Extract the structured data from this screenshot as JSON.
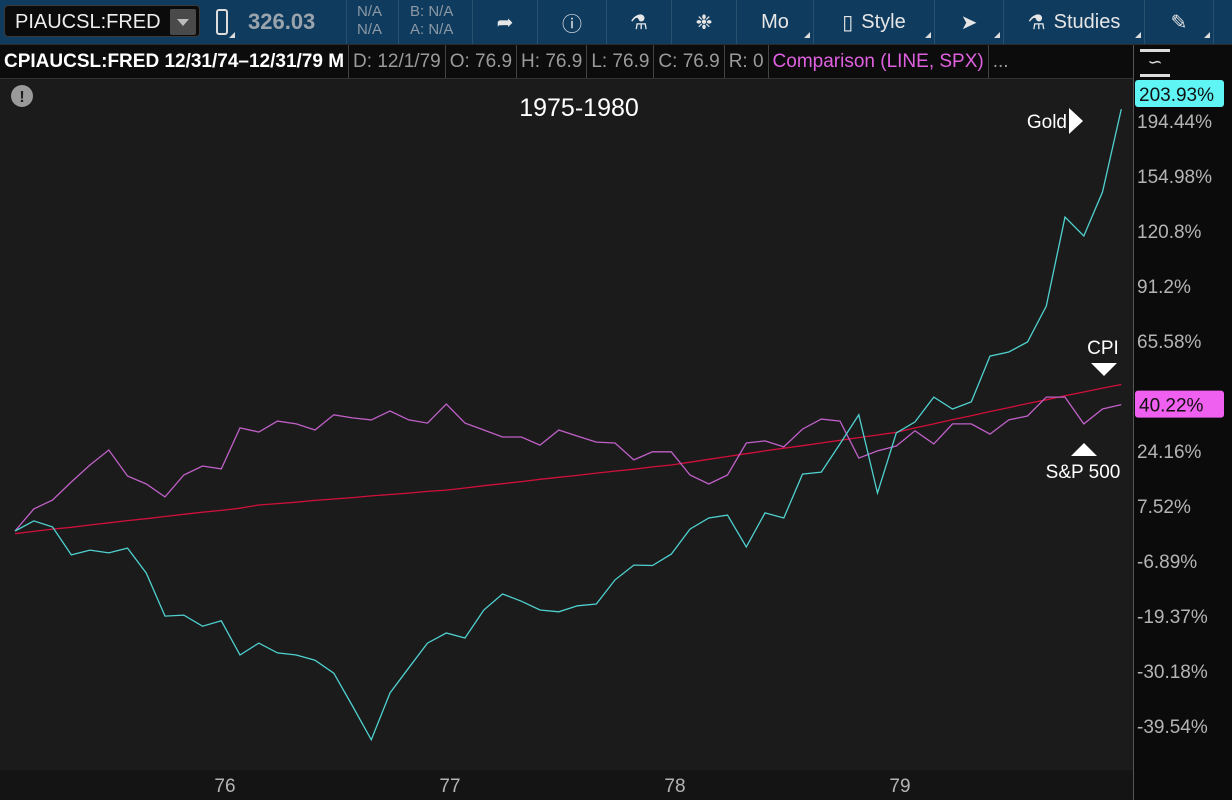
{
  "toolbar": {
    "symbol": "PIAUCSL:FRED",
    "last_price": "326.03",
    "change_top": "N/A",
    "change_bottom": "N/A",
    "bid": "B: N/A",
    "ask": "A: N/A",
    "mode_label": "Mo",
    "style_label": "Style",
    "studies_label": "Studies"
  },
  "infobar": {
    "title": "CPIAUCSL:FRED 12/31/74–12/31/79 M",
    "date": "D: 12/1/79",
    "open": "O: 76.9",
    "high": "H: 76.9",
    "low": "L: 76.9",
    "close": "C: 76.9",
    "range": "R: 0",
    "comparison": "Comparison (LINE, SPX)",
    "more": "..."
  },
  "chart_data": {
    "type": "line",
    "title": "1975-1980",
    "y_scale": "log (percent change)",
    "y_ticks": [
      "194.44%",
      "154.98%",
      "120.8%",
      "91.2%",
      "65.58%",
      "24.16%",
      "7.52%",
      "-6.89%",
      "-19.37%",
      "-30.18%",
      "-39.54%"
    ],
    "y_tick_values": [
      194.44,
      154.98,
      120.8,
      91.2,
      65.58,
      24.16,
      7.52,
      -6.89,
      -19.37,
      -30.18,
      -39.54
    ],
    "x_ticks": [
      "76",
      "77",
      "78",
      "79"
    ],
    "x_range": [
      "Dec 1974",
      "Dec 1979"
    ],
    "grid": false,
    "series": [
      {
        "name": "Gold",
        "color": "#4fd1d0",
        "badge": "203.93%",
        "values": [
          0.7,
          3.4,
          1.8,
          -5.4,
          -4.2,
          -4.9,
          -3.7,
          -9.8,
          -19.4,
          -19.2,
          -21.5,
          -20.4,
          -27.2,
          -24.9,
          -26.8,
          -27.2,
          -28.2,
          -30.6,
          -36.3,
          -41.7,
          -34.1,
          -29.6,
          -24.9,
          -22.9,
          -23.9,
          -18.1,
          -14.6,
          -16.2,
          -18.1,
          -18.5,
          -17.2,
          -16.8,
          -11.4,
          -7.9,
          -8.0,
          -5.2,
          1.2,
          4.2,
          5.0,
          -3.4,
          5.6,
          4.2,
          16.9,
          17.5,
          26.5,
          36.5,
          11.2,
          30.2,
          34.0,
          43.0,
          38.6,
          41.2,
          59.2,
          60.9,
          65.2,
          81.5,
          129.1,
          118.0,
          144.6,
          203.93
        ]
      },
      {
        "name": "S&P 500",
        "color": "#c060c8",
        "badge": "40.22%",
        "values": [
          0.7,
          6.7,
          9.2,
          14.5,
          19.7,
          24.5,
          16.3,
          13.9,
          10.1,
          16.6,
          19.4,
          18.5,
          31.9,
          30.5,
          34.3,
          33.3,
          31.2,
          36.5,
          35.4,
          34.7,
          37.9,
          34.7,
          33.6,
          40.4,
          33.6,
          31.2,
          28.8,
          28.8,
          26.1,
          31.2,
          29.1,
          27.1,
          26.8,
          21.3,
          23.9,
          23.9,
          16.6,
          13.9,
          16.6,
          26.8,
          27.5,
          25.5,
          31.5,
          35.0,
          34.3,
          21.9,
          24.2,
          25.8,
          30.9,
          26.5,
          33.3,
          33.3,
          29.8,
          34.7,
          36.1,
          43.0,
          43.0,
          33.3,
          38.6,
          40.22
        ]
      },
      {
        "name": "CPI",
        "color": "#d0103a",
        "values": [
          0,
          0.6,
          1.2,
          1.7,
          2.3,
          2.9,
          3.5,
          4.0,
          4.6,
          5.2,
          5.8,
          6.3,
          6.9,
          7.8,
          8.2,
          8.6,
          9.1,
          9.5,
          9.9,
          10.4,
          10.8,
          11.2,
          11.7,
          12.1,
          12.7,
          13.4,
          14.0,
          14.6,
          15.3,
          15.9,
          16.5,
          17.2,
          17.8,
          18.4,
          19.1,
          19.7,
          20.6,
          21.5,
          22.4,
          23.3,
          24.2,
          25.1,
          25.9,
          26.8,
          27.7,
          28.6,
          29.5,
          30.4,
          31.9,
          33.3,
          34.8,
          36.2,
          37.7,
          39.1,
          40.6,
          42.0,
          43.5,
          44.9,
          46.4,
          47.8
        ]
      }
    ],
    "annotations": {
      "gold": "Gold",
      "cpi": "CPI",
      "spx": "S&P 500"
    }
  }
}
